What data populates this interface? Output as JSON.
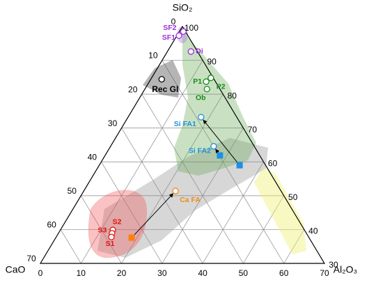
{
  "chart_data": {
    "type": "ternary",
    "axes": {
      "top": {
        "label": "SiO₂",
        "lim": [
          30,
          100
        ],
        "ticks": [
          30,
          40,
          50,
          60,
          70,
          80,
          90,
          100
        ]
      },
      "left": {
        "label": "CaO",
        "lim": [
          0,
          70
        ],
        "ticks": [
          0,
          10,
          20,
          30,
          40,
          50,
          60,
          70
        ]
      },
      "right": {
        "label": "Al₂O₃",
        "lim": [
          0,
          70
        ],
        "ticks": [
          0,
          10,
          20,
          30,
          40,
          50,
          60,
          70
        ]
      }
    },
    "grid": true,
    "points": [
      {
        "name": "SF2",
        "color": "#9b30d9",
        "marker": "circle",
        "SiO2": 98.5,
        "CaO": 0.5,
        "Al2O3": 1.0
      },
      {
        "name": "SF1",
        "color": "#9b30d9",
        "marker": "circle",
        "SiO2": 97.3,
        "CaO": 2.2,
        "Al2O3": 0.5
      },
      {
        "name": "Di",
        "color": "#9b30d9",
        "marker": "circle",
        "SiO2": 92.6,
        "CaO": 1.6,
        "Al2O3": 5.8
      },
      {
        "name": "Rec Gl",
        "color": "#000000",
        "marker": "circle",
        "SiO2": 84.4,
        "CaO": 12.9,
        "Al2O3": 2.7
      },
      {
        "name": "P2",
        "color": "#1a8a1a",
        "marker": "circle",
        "SiO2": 84.8,
        "CaO": 0.6,
        "Al2O3": 14.6
      },
      {
        "name": "P1",
        "color": "#1a8a1a",
        "marker": "circle",
        "SiO2": 83.7,
        "CaO": 2.3,
        "Al2O3": 14.0
      },
      {
        "name": "Ob",
        "color": "#1a8a1a",
        "marker": "circle",
        "SiO2": 81.5,
        "CaO": 3.2,
        "Al2O3": 15.3
      },
      {
        "name": "Si FA1",
        "color": "#1e8fe0",
        "marker": "circle",
        "SiO2": 73.2,
        "CaO": 8.8,
        "Al2O3": 18.0
      },
      {
        "name": "Si FA2",
        "color": "#1e8fe0",
        "marker": "circle",
        "SiO2": 64.6,
        "CaO": 10.0,
        "Al2O3": 25.4
      },
      {
        "color": "#1e8fe8",
        "marker": "square",
        "SiO2": 61.9,
        "CaO": 9.8,
        "Al2O3": 28.3
      },
      {
        "color": "#1e8fe8",
        "marker": "square",
        "SiO2": 59.0,
        "CaO": 6.4,
        "Al2O3": 34.6
      },
      {
        "name": "Ca FA",
        "color": "#f08a1a",
        "marker": "circle",
        "SiO2": 51.4,
        "CaO": 26.0,
        "Al2O3": 22.6
      },
      {
        "color": "#ff7f0e",
        "marker": "square",
        "SiO2": 37.6,
        "CaO": 43.7,
        "Al2O3": 18.7
      },
      {
        "name": "S2",
        "color": "#e01010",
        "marker": "circle",
        "SiO2": 39.9,
        "CaO": 47.2,
        "Al2O3": 12.9
      },
      {
        "name": "S3",
        "color": "#e01010",
        "marker": "circle",
        "SiO2": 38.9,
        "CaO": 47.9,
        "Al2O3": 13.2
      },
      {
        "name": "S1",
        "color": "#e01010",
        "marker": "circle",
        "SiO2": 37.8,
        "CaO": 48.6,
        "Al2O3": 13.6
      }
    ]
  }
}
